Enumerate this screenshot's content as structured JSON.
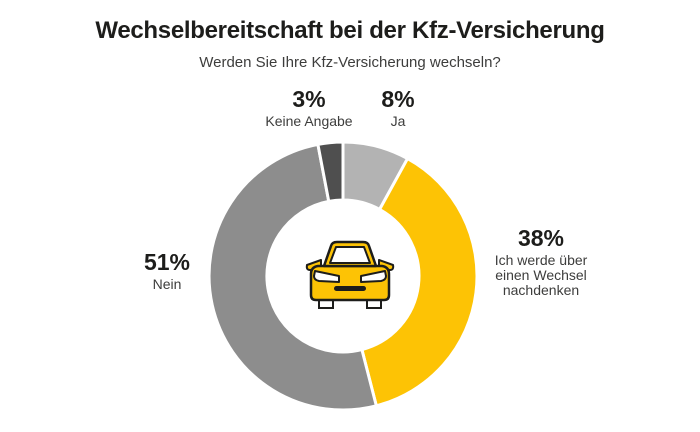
{
  "header": {
    "title": "Wechselbereitschaft bei der Kfz-Versicherung",
    "subtitle": "Werden Sie Ihre Kfz-Versicherung wechseln?"
  },
  "chart_data": {
    "type": "pie",
    "subtype": "donut",
    "title": "Wechselbereitschaft bei der Kfz-Versicherung",
    "subtitle": "Werden Sie Ihre Kfz-Versicherung wechseln?",
    "unit": "%",
    "direction": "clockwise",
    "start_angle": "12-oclock",
    "inner_radius_ratio": 0.57,
    "segment_gap_color": "#ffffff",
    "center_icon": "car-front",
    "segments": [
      {
        "label": "Ja",
        "value": 8,
        "color": "#b3b3b3"
      },
      {
        "label": "Ich werde über einen Wechsel nachdenken",
        "value": 38,
        "color": "#fdc305"
      },
      {
        "label": "Nein",
        "value": 51,
        "color": "#8d8d8d"
      },
      {
        "label": "Keine Angabe",
        "value": 3,
        "color": "#4f4f4f"
      }
    ]
  },
  "callouts": {
    "keine_angabe": {
      "pct": "3%",
      "lines": [
        "Keine Angabe"
      ]
    },
    "ja": {
      "pct": "8%",
      "lines": [
        "Ja"
      ]
    },
    "nein": {
      "pct": "51%",
      "lines": [
        "Nein"
      ]
    },
    "nachdenken": {
      "pct": "38%",
      "lines": [
        "Ich werde über",
        "einen Wechsel",
        "nachdenken"
      ]
    }
  },
  "colors": {
    "accent_yellow": "#fdc305",
    "ink": "#1d1d1b",
    "muted": "#3d3d3c",
    "gray_nein": "#8d8d8d",
    "gray_ja": "#b3b3b3",
    "gray_keine_angabe": "#4f4f4f",
    "background": "#ffffff"
  }
}
